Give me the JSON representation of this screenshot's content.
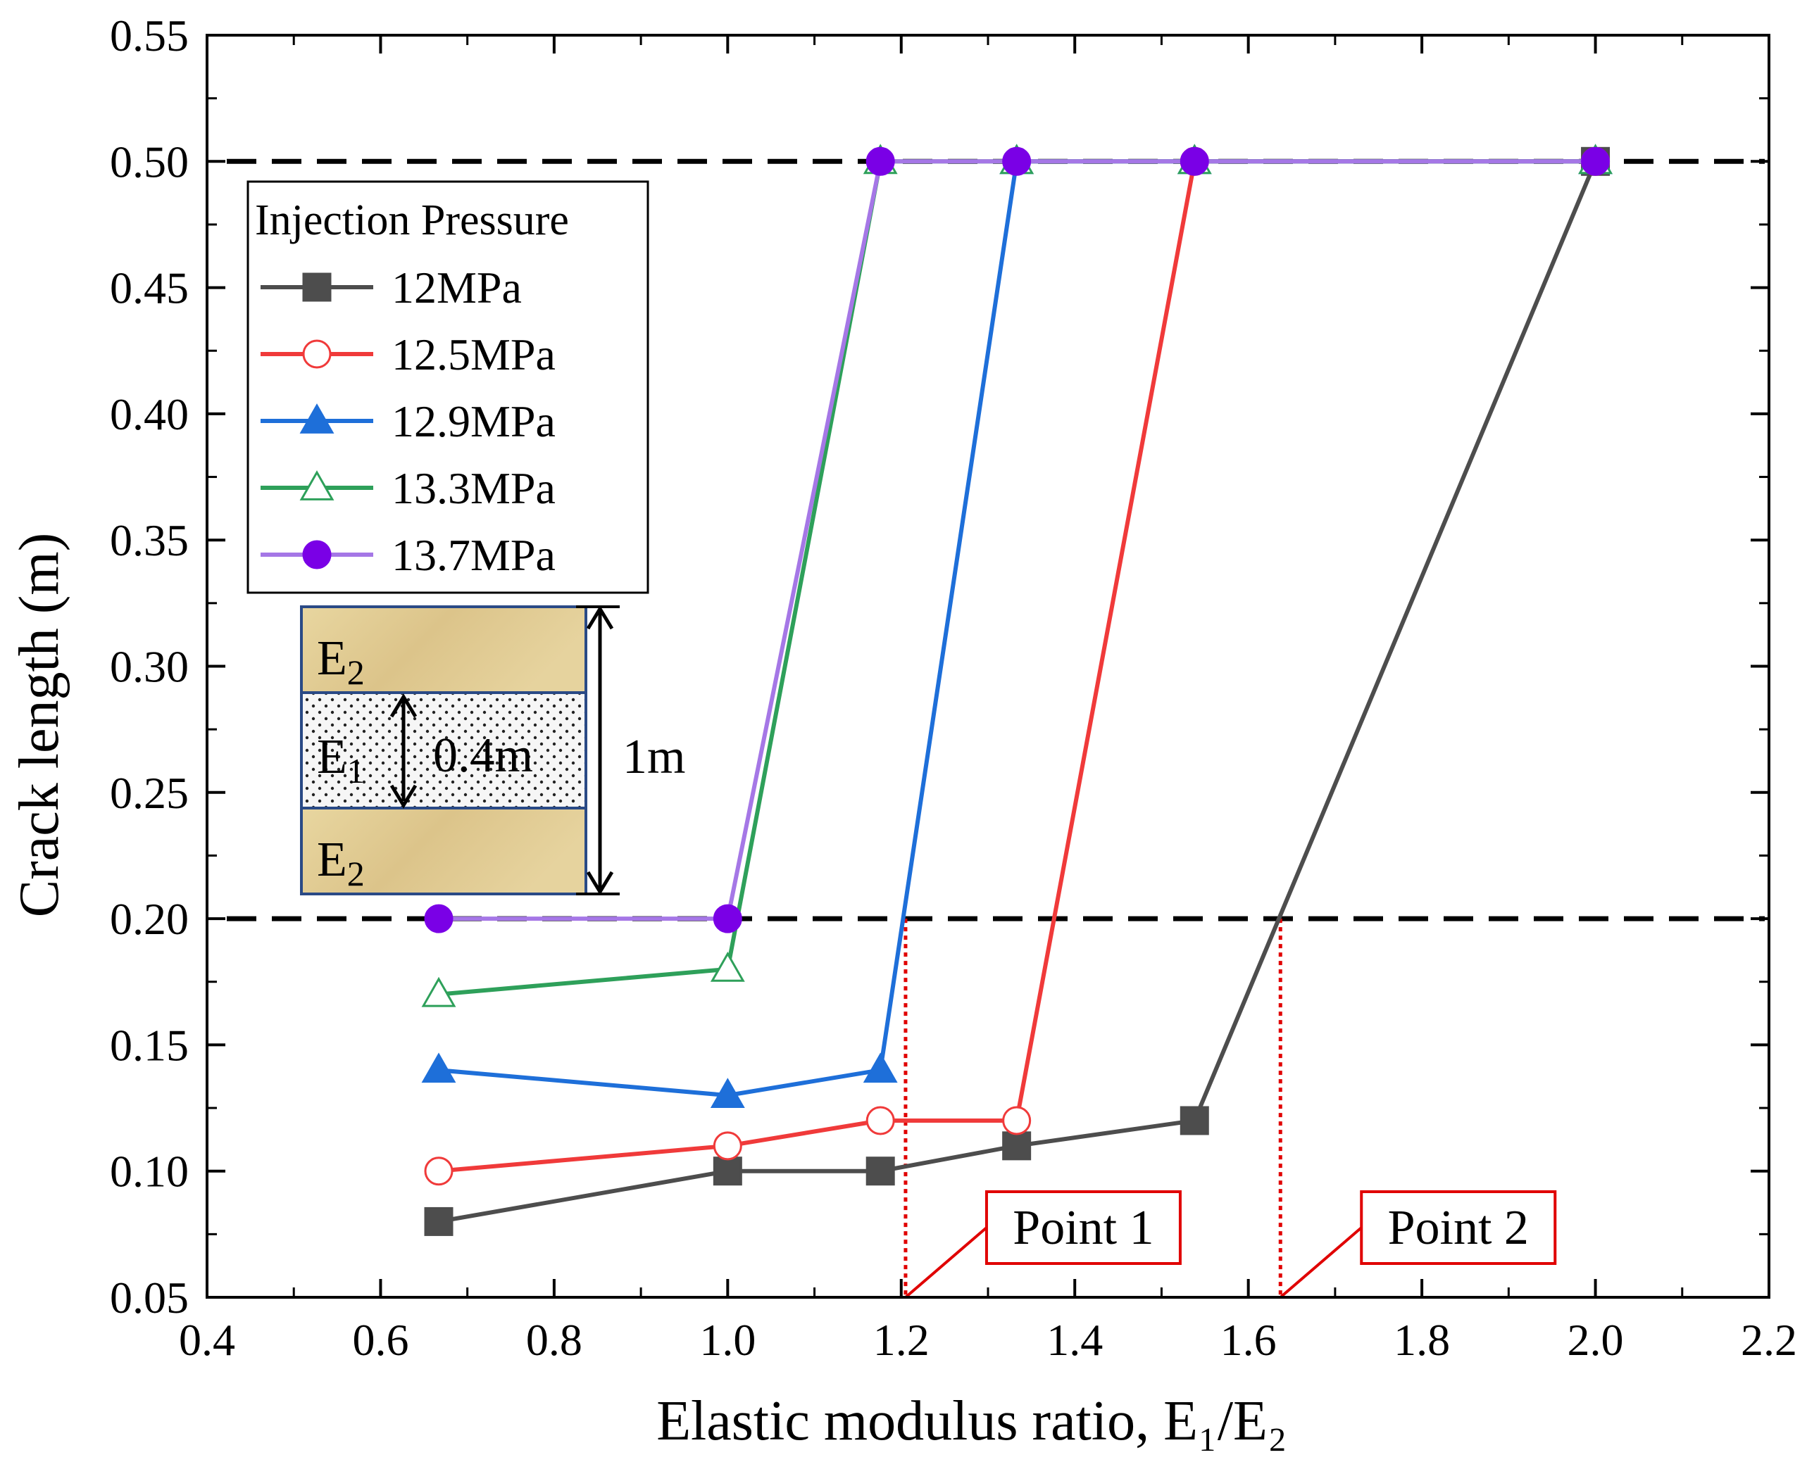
{
  "chart_data": {
    "type": "line",
    "xlabel": "Elastic modulus ratio, E₁/E₂",
    "ylabel": "Crack length (m)",
    "xlim": [
      0.4,
      2.2
    ],
    "ylim": [
      0.05,
      0.55
    ],
    "xticks": [
      "0.4",
      "0.6",
      "0.8",
      "1.0",
      "1.2",
      "1.4",
      "1.6",
      "1.8",
      "2.0",
      "2.2"
    ],
    "yticks": [
      "0.05",
      "0.10",
      "0.15",
      "0.20",
      "0.25",
      "0.30",
      "0.35",
      "0.40",
      "0.45",
      "0.50",
      "0.55"
    ],
    "grid": false,
    "legend": {
      "title": "Injection Pressure",
      "placement": "upper-left"
    },
    "reference_lines": [
      {
        "y": 0.5,
        "style": "dashed",
        "color": "#000000"
      },
      {
        "y": 0.2,
        "style": "dashed",
        "color": "#000000"
      }
    ],
    "series": [
      {
        "name": "12MPa",
        "color": "#4d4d4d",
        "marker": "square",
        "filled": true,
        "x": [
          0.667,
          1.0,
          1.176,
          1.333,
          1.538,
          2.0
        ],
        "values": [
          0.08,
          0.1,
          0.1,
          0.11,
          0.12,
          0.5
        ]
      },
      {
        "name": "12.5MPa",
        "color": "#f03a3a",
        "marker": "circle",
        "filled": false,
        "x": [
          0.667,
          1.0,
          1.176,
          1.333,
          1.538,
          2.0
        ],
        "values": [
          0.1,
          0.11,
          0.12,
          0.12,
          0.5,
          0.5
        ]
      },
      {
        "name": "12.9MPa",
        "color": "#1e6fd9",
        "marker": "triangle",
        "filled": true,
        "x": [
          0.667,
          1.0,
          1.176,
          1.333,
          1.538,
          2.0
        ],
        "values": [
          0.14,
          0.13,
          0.14,
          0.5,
          0.5,
          0.5
        ]
      },
      {
        "name": "13.3MPa",
        "color": "#2ea05a",
        "marker": "triangle",
        "filled": false,
        "x": [
          0.667,
          1.0,
          1.176,
          1.333,
          1.538,
          2.0
        ],
        "values": [
          0.17,
          0.18,
          0.5,
          0.5,
          0.5,
          0.5
        ]
      },
      {
        "name": "13.7MPa",
        "color": "#a577e6",
        "marker": "circle",
        "filled": true,
        "marker_color": "#7a00e6",
        "x": [
          0.667,
          1.0,
          1.176,
          1.333,
          1.538,
          2.0
        ],
        "values": [
          0.2,
          0.2,
          0.5,
          0.5,
          0.5,
          0.5
        ]
      }
    ],
    "annotations": [
      {
        "text": "Point 1",
        "x": 1.205,
        "y": 0.2,
        "color": "#e00000"
      },
      {
        "text": "Point 2",
        "x": 1.637,
        "y": 0.2,
        "color": "#e00000"
      }
    ],
    "inset": {
      "layers": [
        "E2",
        "E1",
        "E2"
      ],
      "labels": {
        "top": "E",
        "top_sub": "2",
        "middle": "E",
        "middle_sub": "1",
        "bottom": "E",
        "bottom_sub": "2"
      },
      "thickness_middle": "0.4m",
      "thickness_total": "1m",
      "colors": {
        "outer": "#e3cf96",
        "middle": "#f4f4f4",
        "border": "#2a4a86"
      }
    }
  }
}
